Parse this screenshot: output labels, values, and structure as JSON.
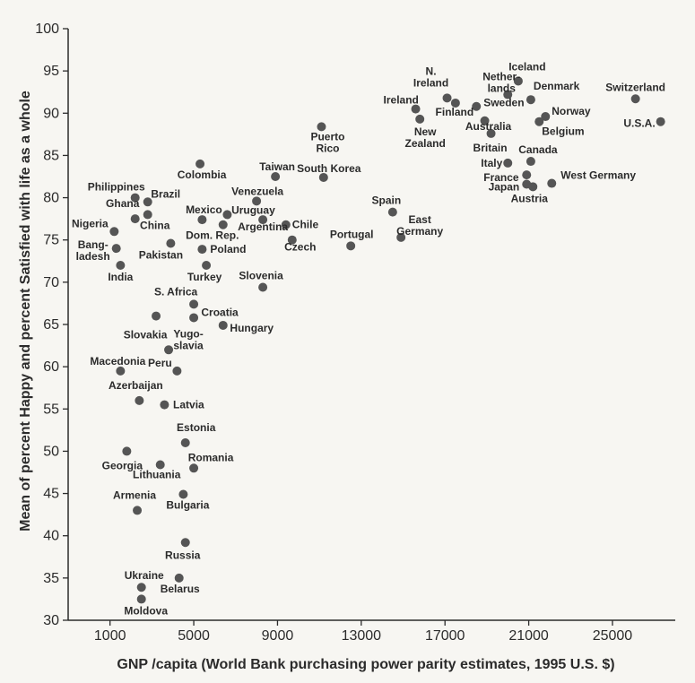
{
  "chart_data": {
    "type": "scatter",
    "xlabel": "GNP /capita (World Bank purchasing power parity estimates, 1995 U.S. $)",
    "ylabel": "Mean of percent Happy and percent Satisfied with life as a whole",
    "xlim": [
      -1000,
      28000
    ],
    "ylim": [
      30,
      100
    ],
    "x_ticks": [
      1000,
      5000,
      9000,
      13000,
      17000,
      21000,
      25000
    ],
    "y_ticks": [
      30,
      35,
      40,
      45,
      50,
      55,
      60,
      65,
      70,
      75,
      80,
      85,
      90,
      95,
      100
    ],
    "grid": false,
    "legend": "none",
    "marker_color": "#555555",
    "points": [
      {
        "label": "Switzerland",
        "x": 26100,
        "y": 91.7
      },
      {
        "label": "U.S.A.",
        "x": 27300,
        "y": 89.0
      },
      {
        "label": "Iceland",
        "x": 20500,
        "y": 93.8
      },
      {
        "label": "Denmark",
        "x": 21100,
        "y": 91.6
      },
      {
        "label": "Netherlands",
        "x": 20000,
        "y": 92.2
      },
      {
        "label": "Norway",
        "x": 21800,
        "y": 89.6
      },
      {
        "label": "Belgium",
        "x": 21500,
        "y": 89.0
      },
      {
        "label": "Sweden",
        "x": 18500,
        "y": 90.8
      },
      {
        "label": "Australia",
        "x": 18900,
        "y": 89.1
      },
      {
        "label": "N. Ireland",
        "x": 17100,
        "y": 91.8
      },
      {
        "label": "Finland",
        "x": 17500,
        "y": 91.2
      },
      {
        "label": "Ireland",
        "x": 15600,
        "y": 90.5
      },
      {
        "label": "New Zealand",
        "x": 15800,
        "y": 89.3
      },
      {
        "label": "Britain",
        "x": 19200,
        "y": 87.6
      },
      {
        "label": "Canada",
        "x": 21100,
        "y": 84.3
      },
      {
        "label": "Italy",
        "x": 20000,
        "y": 84.1
      },
      {
        "label": "France",
        "x": 20900,
        "y": 82.7
      },
      {
        "label": "West Germany",
        "x": 22100,
        "y": 81.7
      },
      {
        "label": "Japan",
        "x": 20900,
        "y": 81.6
      },
      {
        "label": "Austria",
        "x": 21200,
        "y": 81.3
      },
      {
        "label": "Puerto Rico",
        "x": 11100,
        "y": 88.4
      },
      {
        "label": "South Korea",
        "x": 11200,
        "y": 82.4
      },
      {
        "label": "Taiwan",
        "x": 8900,
        "y": 82.5
      },
      {
        "label": "Spain",
        "x": 14500,
        "y": 78.3
      },
      {
        "label": "East Germany",
        "x": 14900,
        "y": 75.3
      },
      {
        "label": "Portugal",
        "x": 12500,
        "y": 74.3
      },
      {
        "label": "Colombia",
        "x": 5300,
        "y": 84.0
      },
      {
        "label": "Venezuela",
        "x": 8000,
        "y": 79.6
      },
      {
        "label": "Uruguay",
        "x": 6600,
        "y": 78.0
      },
      {
        "label": "Argentina",
        "x": 8300,
        "y": 77.4
      },
      {
        "label": "Chile",
        "x": 9400,
        "y": 76.8
      },
      {
        "label": "Mexico",
        "x": 5400,
        "y": 77.4
      },
      {
        "label": "Dom. Rep.",
        "x": 6400,
        "y": 76.8
      },
      {
        "label": "Czech",
        "x": 9700,
        "y": 75.0
      },
      {
        "label": "Poland",
        "x": 5400,
        "y": 73.9
      },
      {
        "label": "Turkey",
        "x": 5600,
        "y": 72.0
      },
      {
        "label": "Slovenia",
        "x": 8300,
        "y": 69.4
      },
      {
        "label": "Philippines",
        "x": 2200,
        "y": 80.0
      },
      {
        "label": "Brazil",
        "x": 2800,
        "y": 79.5
      },
      {
        "label": "Ghana",
        "x": 2200,
        "y": 77.5
      },
      {
        "label": "China",
        "x": 2800,
        "y": 78.0
      },
      {
        "label": "Nigeria",
        "x": 1200,
        "y": 76.0
      },
      {
        "label": "Pakistan",
        "x": 3900,
        "y": 74.6
      },
      {
        "label": "Bangladesh",
        "x": 1300,
        "y": 74.0
      },
      {
        "label": "India",
        "x": 1500,
        "y": 72.0
      },
      {
        "label": "S. Africa",
        "x": 5000,
        "y": 67.4
      },
      {
        "label": "Croatia",
        "x": 5000,
        "y": 65.8
      },
      {
        "label": "Slovakia",
        "x": 3200,
        "y": 66.0
      },
      {
        "label": "Hungary",
        "x": 6400,
        "y": 64.9
      },
      {
        "label": "Yugoslavia",
        "x": 3800,
        "y": 62.0
      },
      {
        "label": "Peru",
        "x": 4200,
        "y": 59.5
      },
      {
        "label": "Macedonia",
        "x": 1500,
        "y": 59.5
      },
      {
        "label": "Azerbaijan",
        "x": 2400,
        "y": 56.0
      },
      {
        "label": "Latvia",
        "x": 3600,
        "y": 55.5
      },
      {
        "label": "Estonia",
        "x": 4600,
        "y": 51.0
      },
      {
        "label": "Georgia",
        "x": 1800,
        "y": 50.0
      },
      {
        "label": "Lithuania",
        "x": 3400,
        "y": 48.4
      },
      {
        "label": "Romania",
        "x": 5000,
        "y": 48.0
      },
      {
        "label": "Bulgaria",
        "x": 4500,
        "y": 44.9
      },
      {
        "label": "Armenia",
        "x": 2300,
        "y": 43.0
      },
      {
        "label": "Russia",
        "x": 4600,
        "y": 39.2
      },
      {
        "label": "Ukraine",
        "x": 2500,
        "y": 33.9
      },
      {
        "label": "Belarus",
        "x": 4300,
        "y": 35.0
      },
      {
        "label": "Moldova",
        "x": 2500,
        "y": 32.5
      }
    ]
  }
}
